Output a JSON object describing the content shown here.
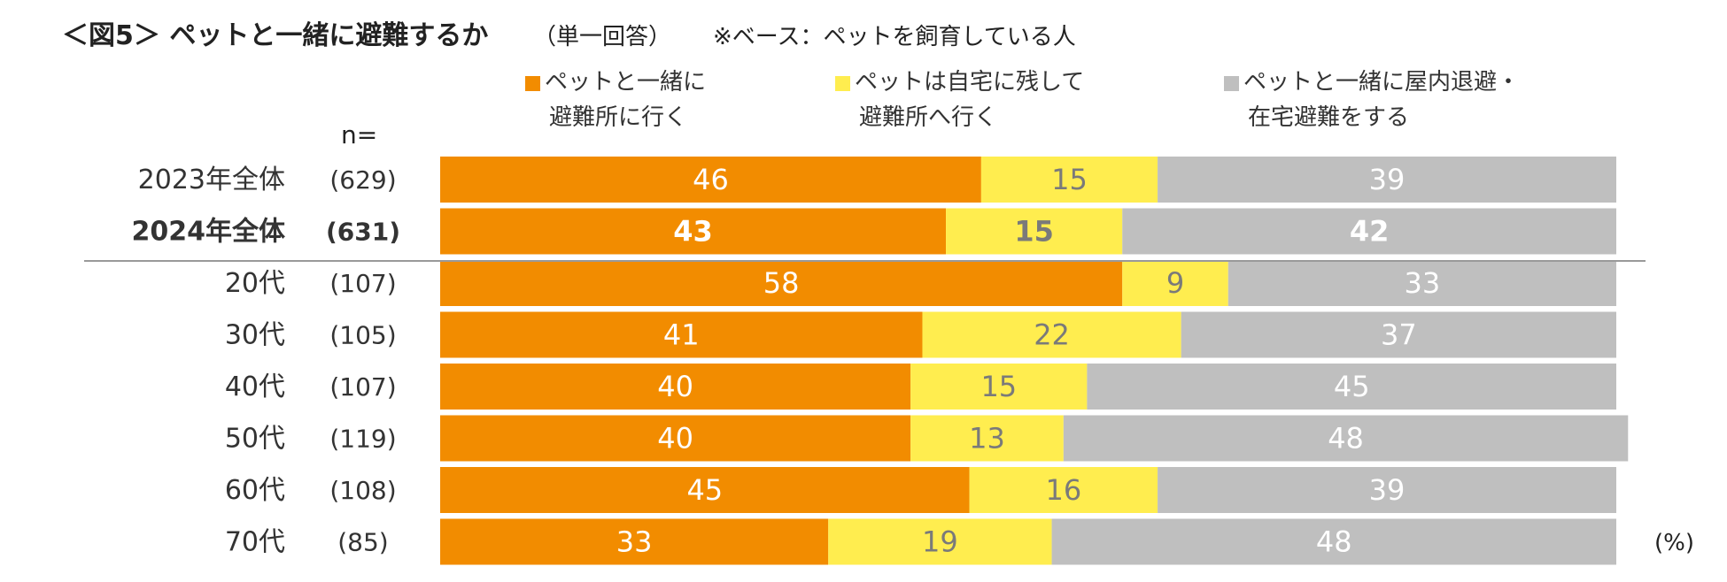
{
  "chart_data": {
    "type": "bar",
    "stacked": true,
    "orientation": "horizontal",
    "title": "＜図5＞ ペットと一緒に避難するか",
    "subtitle": "（単一回答）",
    "base_note": "※ベース：ペットを飼育している人",
    "n_label": "n=",
    "unit_label": "(%)",
    "legend_position": "top",
    "categories": [
      "2023年全体",
      "2024年全体",
      "20代",
      "30代",
      "40代",
      "50代",
      "60代",
      "70代"
    ],
    "n_values": [
      "(629)",
      "(631)",
      "(107)",
      "(105)",
      "(107)",
      "(119)",
      "(108)",
      "(85)"
    ],
    "bold_category": "2024年全体",
    "series": [
      {
        "name": "ペットと一緒に避難所に行く",
        "legend_lines": [
          "ペットと一緒に",
          "避難所に行く"
        ],
        "color": "#F28C00",
        "values": [
          46,
          43,
          58,
          41,
          40,
          40,
          45,
          33
        ]
      },
      {
        "name": "ペットは自宅に残して避難所へ行く",
        "legend_lines": [
          "ペットは自宅に残して",
          "避難所へ行く"
        ],
        "color": "#FFED4F",
        "values": [
          15,
          15,
          9,
          22,
          15,
          13,
          16,
          19
        ]
      },
      {
        "name": "ペットと一緒に屋内退避・在宅避難をする",
        "legend_lines": [
          "ペットと一緒に屋内退避・",
          "在宅避難をする"
        ],
        "color": "#BFBFBF",
        "values": [
          39,
          42,
          33,
          37,
          45,
          48,
          39,
          48
        ]
      }
    ],
    "xlim": [
      0,
      100
    ]
  }
}
